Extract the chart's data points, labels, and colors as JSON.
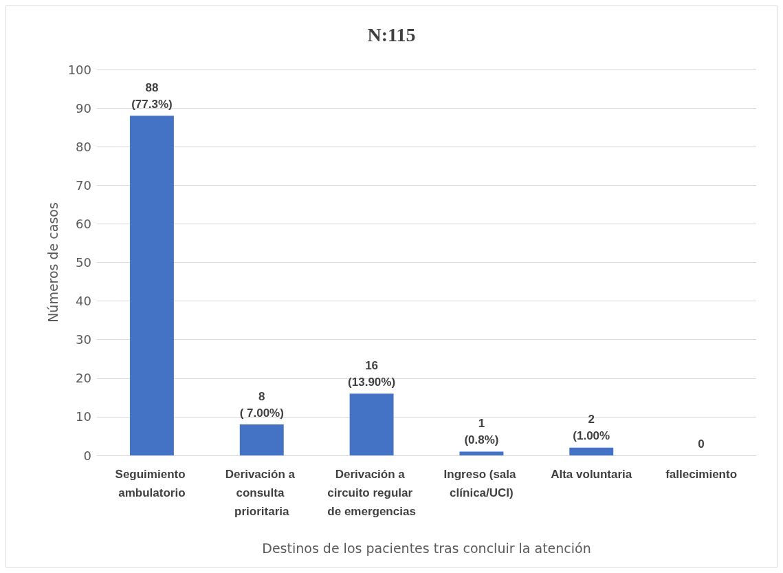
{
  "chart_data": {
    "type": "bar",
    "title": "N:115",
    "xlabel": "Destinos de los pacientes tras concluir la atención",
    "ylabel": "Números de casos",
    "categories": [
      "Seguimiento ambulatorio",
      "Derivación a consulta prioritaria",
      "Derivación a circuito regular de emergencias",
      "Ingreso (sala clínica/UCI)",
      "Alta voluntaria",
      "fallecimiento"
    ],
    "values": [
      88,
      8,
      16,
      1,
      2,
      0
    ],
    "value_labels": [
      "88\n(77.3%)",
      "8\n( 7.00%)",
      "16\n(13.90%)",
      "1\n(0.8%)",
      "2\n(1.00%",
      "0"
    ],
    "color": "#4472c4",
    "ylim": [
      0,
      100
    ],
    "yticks": [
      0,
      10,
      20,
      30,
      40,
      50,
      60,
      70,
      80,
      90,
      100
    ],
    "grid": "y"
  }
}
